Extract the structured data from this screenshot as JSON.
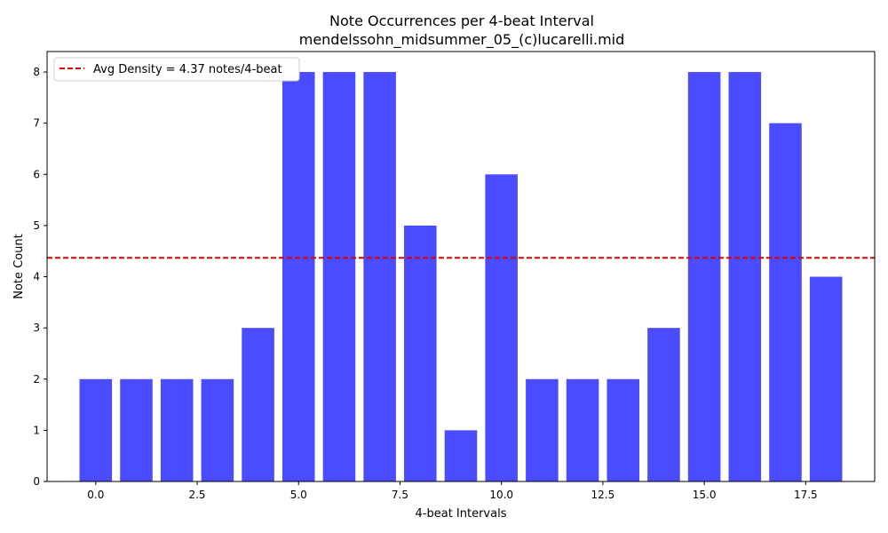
{
  "chart_data": {
    "type": "bar",
    "title": "Note Occurrences per 4-beat Interval",
    "subtitle": "mendelssohn_midsummer_05_(c)lucarelli.mid",
    "xlabel": "4-beat Intervals",
    "ylabel": "Note Count",
    "x": [
      0,
      1,
      2,
      3,
      4,
      5,
      6,
      7,
      8,
      9,
      10,
      11,
      12,
      13,
      14,
      15,
      16,
      17,
      18
    ],
    "values": [
      2,
      2,
      2,
      2,
      3,
      8,
      8,
      8,
      5,
      1,
      6,
      2,
      2,
      2,
      3,
      8,
      8,
      7,
      4
    ],
    "xlim": [
      -1.2,
      19.2
    ],
    "ylim": [
      0,
      8.4
    ],
    "xticks": [
      "0.0",
      "2.5",
      "5.0",
      "7.5",
      "10.0",
      "12.5",
      "15.0",
      "17.5"
    ],
    "xtick_values": [
      0,
      2.5,
      5,
      7.5,
      10,
      12.5,
      15,
      17.5
    ],
    "yticks": [
      "0",
      "1",
      "2",
      "3",
      "4",
      "5",
      "6",
      "7",
      "8"
    ],
    "ytick_values": [
      0,
      1,
      2,
      3,
      4,
      5,
      6,
      7,
      8
    ],
    "bar_color": "#4b4bff",
    "avg_line": {
      "value": 4.37,
      "label": "Avg Density = 4.37 notes/4-beat",
      "color": "#dd0000"
    },
    "legend_position": "top-left",
    "grid": false
  }
}
